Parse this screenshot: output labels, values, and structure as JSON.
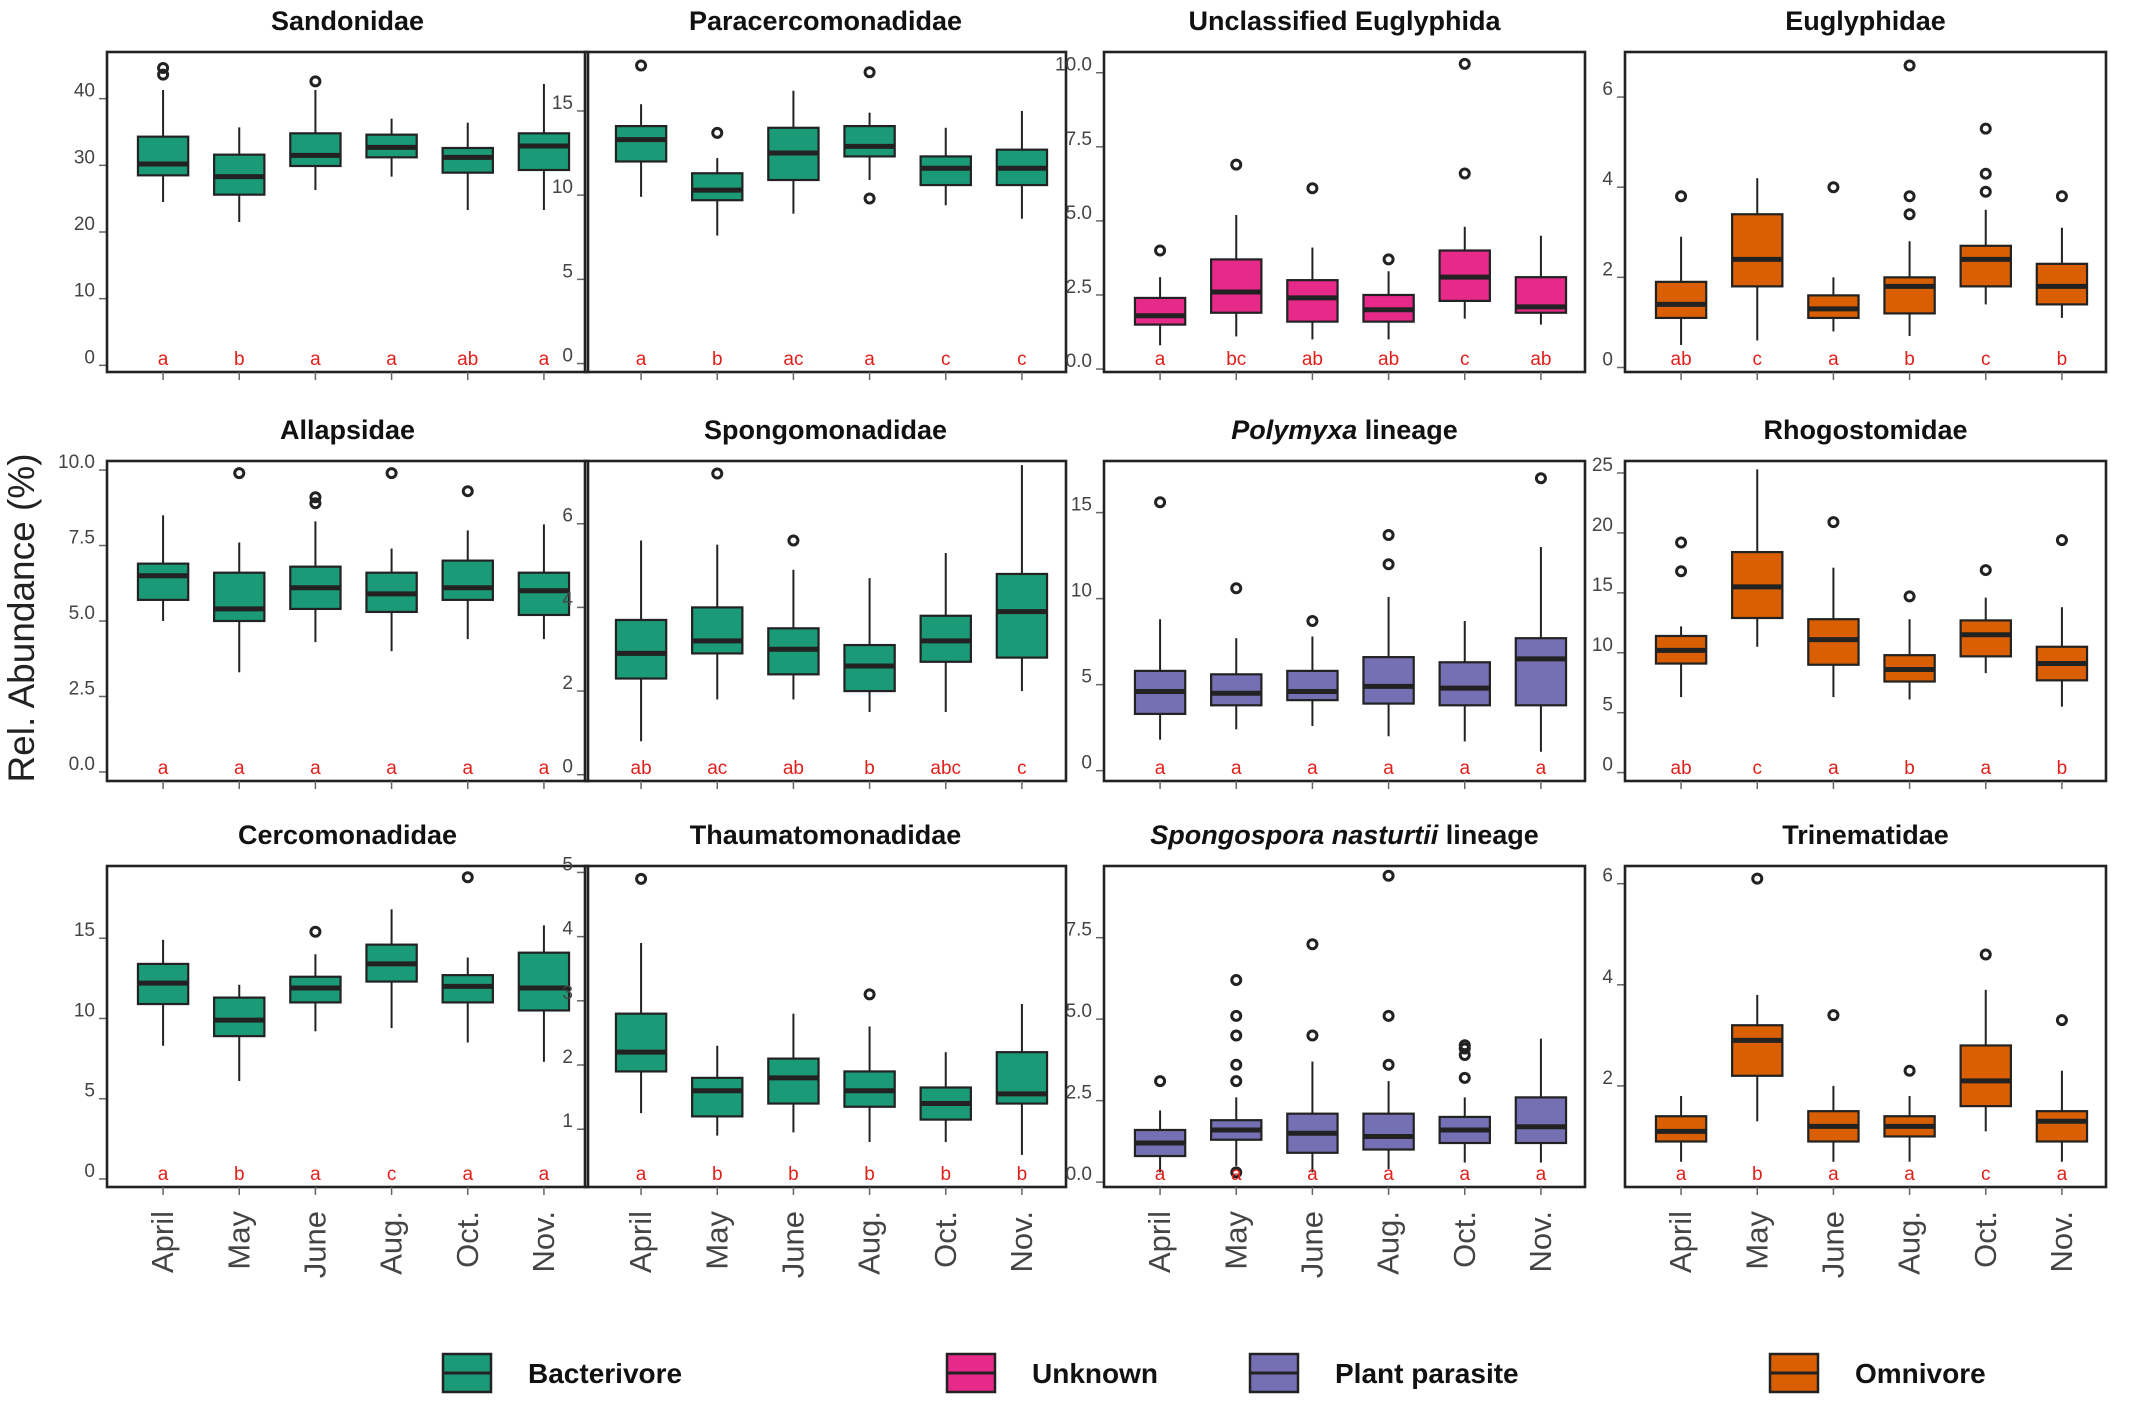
{
  "y_axis_label": "Rel. Abundance (%)",
  "months": [
    "April",
    "May",
    "June",
    "Aug.",
    "Oct.",
    "Nov."
  ],
  "groups": {
    "Bacterivore": "#1b9a77",
    "Unknown": "#e7298a",
    "Plant parasite": "#7570b3",
    "Omnivore": "#d95f02"
  },
  "legend": [
    "Bacterivore",
    "Unknown",
    "Plant parasite",
    "Omnivore"
  ],
  "chart_data": [
    {
      "type": "boxplot",
      "title": "Sandonidae",
      "group": "Bacterivore",
      "ylim": [
        -1,
        47
      ],
      "yticks": [
        0,
        10,
        20,
        30,
        40
      ],
      "yticklabels": [
        "0",
        "10",
        "20",
        "30",
        "40"
      ],
      "letters": [
        "a",
        "b",
        "a",
        "a",
        "ab",
        "a"
      ],
      "boxes": [
        {
          "lw": 24.5,
          "q1": 28.5,
          "med": 30.2,
          "q3": 34.3,
          "uw": 41.3,
          "out": [
            43.6,
            44.6
          ]
        },
        {
          "lw": 21.5,
          "q1": 25.6,
          "med": 28.3,
          "q3": 31.6,
          "uw": 35.7,
          "out": []
        },
        {
          "lw": 26.3,
          "q1": 29.9,
          "med": 31.5,
          "q3": 34.8,
          "uw": 41.3,
          "out": [
            42.6
          ]
        },
        {
          "lw": 28.3,
          "q1": 31.2,
          "med": 32.7,
          "q3": 34.6,
          "uw": 37.0,
          "out": []
        },
        {
          "lw": 23.3,
          "q1": 28.9,
          "med": 31.2,
          "q3": 32.6,
          "uw": 36.4,
          "out": []
        },
        {
          "lw": 23.3,
          "q1": 29.3,
          "med": 32.9,
          "q3": 34.8,
          "uw": 42.2,
          "out": []
        }
      ]
    },
    {
      "type": "boxplot",
      "title": "Paracercomonadidae",
      "group": "Bacterivore",
      "ylim": [
        -0.5,
        18.5
      ],
      "yticks": [
        0,
        5,
        10,
        15
      ],
      "yticklabels": [
        "0",
        "5",
        "10",
        "15"
      ],
      "letters": [
        "a",
        "b",
        "ac",
        "a",
        "c",
        "c"
      ],
      "boxes": [
        {
          "lw": 9.9,
          "q1": 12.0,
          "med": 13.3,
          "q3": 14.1,
          "uw": 15.4,
          "out": [
            17.7
          ]
        },
        {
          "lw": 7.6,
          "q1": 9.7,
          "med": 10.3,
          "q3": 11.3,
          "uw": 12.2,
          "out": [
            13.7
          ]
        },
        {
          "lw": 8.9,
          "q1": 10.9,
          "med": 12.5,
          "q3": 14.0,
          "uw": 16.2,
          "out": []
        },
        {
          "lw": 10.9,
          "q1": 12.3,
          "med": 12.9,
          "q3": 14.1,
          "uw": 14.9,
          "out": [
            9.8,
            17.3
          ]
        },
        {
          "lw": 9.4,
          "q1": 10.6,
          "med": 11.6,
          "q3": 12.3,
          "uw": 14.0,
          "out": []
        },
        {
          "lw": 8.6,
          "q1": 10.6,
          "med": 11.6,
          "q3": 12.7,
          "uw": 15.0,
          "out": []
        }
      ]
    },
    {
      "type": "boxplot",
      "title": "Unclassified Euglyphida",
      "group": "Unknown",
      "ylim": [
        -0.1,
        10.7
      ],
      "yticks": [
        0,
        2.5,
        5,
        7.5,
        10
      ],
      "yticklabels": [
        "0.0",
        "2.5",
        "5.0",
        "7.5",
        "10.0"
      ],
      "letters": [
        "a",
        "bc",
        "ab",
        "ab",
        "c",
        "ab"
      ],
      "boxes": [
        {
          "lw": 0.8,
          "q1": 1.5,
          "med": 1.8,
          "q3": 2.4,
          "uw": 3.1,
          "out": [
            4.0
          ]
        },
        {
          "lw": 1.1,
          "q1": 1.9,
          "med": 2.6,
          "q3": 3.7,
          "uw": 5.2,
          "out": [
            6.9
          ]
        },
        {
          "lw": 1.0,
          "q1": 1.6,
          "med": 2.4,
          "q3": 3.0,
          "uw": 4.1,
          "out": [
            6.1
          ]
        },
        {
          "lw": 1.0,
          "q1": 1.6,
          "med": 2.0,
          "q3": 2.5,
          "uw": 3.3,
          "out": [
            3.7
          ]
        },
        {
          "lw": 1.7,
          "q1": 2.3,
          "med": 3.1,
          "q3": 4.0,
          "uw": 4.8,
          "out": [
            6.6,
            10.3
          ]
        },
        {
          "lw": 1.5,
          "q1": 1.9,
          "med": 2.1,
          "q3": 3.1,
          "uw": 4.5,
          "out": []
        }
      ]
    },
    {
      "type": "boxplot",
      "title": "Euglyphidae",
      "group": "Omnivore",
      "ylim": [
        -0.1,
        7.0
      ],
      "yticks": [
        0,
        2,
        4,
        6
      ],
      "yticklabels": [
        "0",
        "2",
        "4",
        "6"
      ],
      "letters": [
        "ab",
        "c",
        "a",
        "b",
        "c",
        "b"
      ],
      "boxes": [
        {
          "lw": 0.5,
          "q1": 1.1,
          "med": 1.4,
          "q3": 1.9,
          "uw": 2.9,
          "out": [
            3.8
          ]
        },
        {
          "lw": 0.6,
          "q1": 1.8,
          "med": 2.4,
          "q3": 3.4,
          "uw": 4.2,
          "out": []
        },
        {
          "lw": 0.8,
          "q1": 1.1,
          "med": 1.3,
          "q3": 1.6,
          "uw": 2.0,
          "out": [
            4.0
          ]
        },
        {
          "lw": 0.7,
          "q1": 1.2,
          "med": 1.8,
          "q3": 2.0,
          "uw": 2.8,
          "out": [
            3.4,
            3.8,
            6.7
          ]
        },
        {
          "lw": 1.4,
          "q1": 1.8,
          "med": 2.4,
          "q3": 2.7,
          "uw": 3.5,
          "out": [
            3.9,
            4.3,
            5.3
          ]
        },
        {
          "lw": 1.1,
          "q1": 1.4,
          "med": 1.8,
          "q3": 2.3,
          "uw": 3.1,
          "out": [
            3.8
          ]
        }
      ]
    },
    {
      "type": "boxplot",
      "title": "Allapsidae",
      "group": "Bacterivore",
      "ylim": [
        -0.3,
        10.3
      ],
      "yticks": [
        0,
        2.5,
        5,
        7.5,
        10
      ],
      "yticklabels": [
        "0.0",
        "2.5",
        "5.0",
        "7.5",
        "10.0"
      ],
      "letters": [
        "a",
        "a",
        "a",
        "a",
        "a",
        "a"
      ],
      "boxes": [
        {
          "lw": 5.0,
          "q1": 5.7,
          "med": 6.5,
          "q3": 6.9,
          "uw": 8.5,
          "out": []
        },
        {
          "lw": 3.3,
          "q1": 5.0,
          "med": 5.4,
          "q3": 6.6,
          "uw": 7.6,
          "out": [
            9.9
          ]
        },
        {
          "lw": 4.3,
          "q1": 5.4,
          "med": 6.1,
          "q3": 6.8,
          "uw": 8.3,
          "out": [
            8.9,
            9.1
          ]
        },
        {
          "lw": 4.0,
          "q1": 5.3,
          "med": 5.9,
          "q3": 6.6,
          "uw": 7.4,
          "out": [
            9.9
          ]
        },
        {
          "lw": 4.4,
          "q1": 5.7,
          "med": 6.1,
          "q3": 7.0,
          "uw": 8.0,
          "out": [
            9.3
          ]
        },
        {
          "lw": 4.4,
          "q1": 5.2,
          "med": 6.0,
          "q3": 6.6,
          "uw": 8.2,
          "out": []
        }
      ]
    },
    {
      "type": "boxplot",
      "title": "Spongomonadidae",
      "group": "Bacterivore",
      "ylim": [
        -0.15,
        7.5
      ],
      "yticks": [
        0,
        2,
        4,
        6
      ],
      "yticklabels": [
        "0",
        "2",
        "4",
        "6"
      ],
      "letters": [
        "ab",
        "ac",
        "ab",
        "b",
        "abc",
        "c"
      ],
      "boxes": [
        {
          "lw": 0.8,
          "q1": 2.3,
          "med": 2.9,
          "q3": 3.7,
          "uw": 5.6,
          "out": []
        },
        {
          "lw": 1.8,
          "q1": 2.9,
          "med": 3.2,
          "q3": 4.0,
          "uw": 5.5,
          "out": [
            7.2
          ]
        },
        {
          "lw": 1.8,
          "q1": 2.4,
          "med": 3.0,
          "q3": 3.5,
          "uw": 4.9,
          "out": [
            5.6
          ]
        },
        {
          "lw": 1.5,
          "q1": 2.0,
          "med": 2.6,
          "q3": 3.1,
          "uw": 4.7,
          "out": []
        },
        {
          "lw": 1.5,
          "q1": 2.7,
          "med": 3.2,
          "q3": 3.8,
          "uw": 5.3,
          "out": []
        },
        {
          "lw": 2.0,
          "q1": 2.8,
          "med": 3.9,
          "q3": 4.8,
          "uw": 7.4,
          "out": []
        }
      ]
    },
    {
      "type": "boxplot",
      "title": "Polymyxa lineage",
      "title_italic": "Polymyxa",
      "title_rest": " lineage",
      "group": "Plant parasite",
      "ylim": [
        -0.6,
        18.0
      ],
      "yticks": [
        0,
        5,
        10,
        15
      ],
      "yticklabels": [
        "0",
        "5",
        "10",
        "15"
      ],
      "letters": [
        "a",
        "a",
        "a",
        "a",
        "a",
        "a"
      ],
      "boxes": [
        {
          "lw": 1.8,
          "q1": 3.3,
          "med": 4.6,
          "q3": 5.8,
          "uw": 8.8,
          "out": [
            15.6
          ]
        },
        {
          "lw": 2.4,
          "q1": 3.8,
          "med": 4.5,
          "q3": 5.6,
          "uw": 7.7,
          "out": [
            10.6
          ]
        },
        {
          "lw": 2.6,
          "q1": 4.1,
          "med": 4.6,
          "q3": 5.8,
          "uw": 7.8,
          "out": [
            8.7
          ]
        },
        {
          "lw": 2.0,
          "q1": 3.9,
          "med": 4.9,
          "q3": 6.6,
          "uw": 10.1,
          "out": [
            12.0,
            13.7
          ]
        },
        {
          "lw": 1.7,
          "q1": 3.8,
          "med": 4.8,
          "q3": 6.3,
          "uw": 8.7,
          "out": []
        },
        {
          "lw": 1.1,
          "q1": 3.8,
          "med": 6.5,
          "q3": 7.7,
          "uw": 13.0,
          "out": [
            17.0
          ]
        }
      ]
    },
    {
      "type": "boxplot",
      "title": "Rhogostomidae",
      "group": "Omnivore",
      "ylim": [
        -0.7,
        26.0
      ],
      "yticks": [
        0,
        5,
        10,
        15,
        20,
        25
      ],
      "yticklabels": [
        "0",
        "5",
        "10",
        "15",
        "20",
        "25"
      ],
      "letters": [
        "ab",
        "c",
        "a",
        "b",
        "a",
        "b"
      ],
      "boxes": [
        {
          "lw": 6.3,
          "q1": 9.1,
          "med": 10.2,
          "q3": 11.4,
          "uw": 12.2,
          "out": [
            16.8,
            19.2
          ]
        },
        {
          "lw": 10.5,
          "q1": 12.9,
          "med": 15.5,
          "q3": 18.4,
          "uw": 25.3,
          "out": []
        },
        {
          "lw": 6.3,
          "q1": 9.0,
          "med": 11.1,
          "q3": 12.8,
          "uw": 17.1,
          "out": [
            20.9
          ]
        },
        {
          "lw": 6.1,
          "q1": 7.6,
          "med": 8.6,
          "q3": 9.8,
          "uw": 12.8,
          "out": [
            14.7
          ]
        },
        {
          "lw": 8.3,
          "q1": 9.7,
          "med": 11.5,
          "q3": 12.7,
          "uw": 14.6,
          "out": [
            16.9
          ]
        },
        {
          "lw": 5.5,
          "q1": 7.7,
          "med": 9.1,
          "q3": 10.5,
          "uw": 13.8,
          "out": [
            19.4
          ]
        }
      ]
    },
    {
      "type": "boxplot",
      "title": "Cercomonadidae",
      "group": "Bacterivore",
      "ylim": [
        -0.5,
        19.5
      ],
      "yticks": [
        0,
        5,
        10,
        15
      ],
      "yticklabels": [
        "0",
        "5",
        "10",
        "15"
      ],
      "letters": [
        "a",
        "b",
        "a",
        "c",
        "a",
        "a"
      ],
      "boxes": [
        {
          "lw": 8.3,
          "q1": 10.9,
          "med": 12.2,
          "q3": 13.4,
          "uw": 14.9,
          "out": []
        },
        {
          "lw": 6.1,
          "q1": 8.9,
          "med": 9.9,
          "q3": 11.3,
          "uw": 12.1,
          "out": []
        },
        {
          "lw": 9.2,
          "q1": 11.0,
          "med": 11.9,
          "q3": 12.6,
          "uw": 14.0,
          "out": [
            15.4
          ]
        },
        {
          "lw": 9.4,
          "q1": 12.3,
          "med": 13.4,
          "q3": 14.6,
          "uw": 16.8,
          "out": []
        },
        {
          "lw": 8.5,
          "q1": 11.0,
          "med": 12.0,
          "q3": 12.7,
          "uw": 13.8,
          "out": [
            18.8
          ]
        },
        {
          "lw": 7.3,
          "q1": 10.5,
          "med": 11.9,
          "q3": 14.1,
          "uw": 15.8,
          "out": []
        }
      ]
    },
    {
      "type": "boxplot",
      "title": "Thaumatomonadidae",
      "group": "Bacterivore",
      "ylim": [
        0.1,
        5.1
      ],
      "yticks": [
        1,
        2,
        3,
        4,
        5
      ],
      "yticklabels": [
        "1",
        "2",
        "3",
        "4",
        "5"
      ],
      "letters": [
        "a",
        "b",
        "b",
        "b",
        "b",
        "b"
      ],
      "boxes": [
        {
          "lw": 1.25,
          "q1": 1.9,
          "med": 2.2,
          "q3": 2.8,
          "uw": 3.9,
          "out": [
            4.9
          ]
        },
        {
          "lw": 0.9,
          "q1": 1.2,
          "med": 1.6,
          "q3": 1.8,
          "uw": 2.3,
          "out": []
        },
        {
          "lw": 0.95,
          "q1": 1.4,
          "med": 1.8,
          "q3": 2.1,
          "uw": 2.8,
          "out": []
        },
        {
          "lw": 0.8,
          "q1": 1.35,
          "med": 1.6,
          "q3": 1.9,
          "uw": 2.6,
          "out": [
            3.1
          ]
        },
        {
          "lw": 0.8,
          "q1": 1.15,
          "med": 1.4,
          "q3": 1.65,
          "uw": 2.2,
          "out": []
        },
        {
          "lw": 0.6,
          "q1": 1.4,
          "med": 1.55,
          "q3": 2.2,
          "uw": 2.95,
          "out": []
        }
      ]
    },
    {
      "type": "boxplot",
      "title": "Spongospora nasturtii lineage",
      "title_italic": "Spongospora nasturtii",
      "title_rest": " lineage",
      "group": "Plant parasite",
      "ylim": [
        -0.15,
        9.7
      ],
      "yticks": [
        0,
        2.5,
        5,
        7.5
      ],
      "yticklabels": [
        "0.0",
        "2.5",
        "5.0",
        "7.5"
      ],
      "letters": [
        "a",
        "a",
        "a",
        "a",
        "a",
        "a"
      ],
      "boxes": [
        {
          "lw": 0.3,
          "q1": 0.8,
          "med": 1.2,
          "q3": 1.6,
          "uw": 2.2,
          "out": [
            3.1
          ]
        },
        {
          "lw": 0.5,
          "q1": 1.3,
          "med": 1.6,
          "q3": 1.9,
          "uw": 2.6,
          "out": [
            0.3,
            3.1,
            3.6,
            4.5,
            5.1,
            6.2
          ]
        },
        {
          "lw": 0.3,
          "q1": 0.9,
          "med": 1.5,
          "q3": 2.1,
          "uw": 3.7,
          "out": [
            4.5,
            7.3
          ]
        },
        {
          "lw": 0.4,
          "q1": 1.0,
          "med": 1.4,
          "q3": 2.1,
          "uw": 3.1,
          "out": [
            3.6,
            5.1,
            9.4
          ]
        },
        {
          "lw": 0.6,
          "q1": 1.2,
          "med": 1.6,
          "q3": 2.0,
          "uw": 2.6,
          "out": [
            3.2,
            3.9,
            4.1,
            4.2
          ]
        },
        {
          "lw": 0.6,
          "q1": 1.2,
          "med": 1.7,
          "q3": 2.6,
          "uw": 4.4,
          "out": []
        }
      ]
    },
    {
      "type": "boxplot",
      "title": "Trinematidae",
      "group": "Omnivore",
      "ylim": [
        0.0,
        6.35
      ],
      "yticks": [
        2,
        4,
        6
      ],
      "yticklabels": [
        "2",
        "4",
        "6"
      ],
      "letters": [
        "a",
        "b",
        "a",
        "a",
        "c",
        "a"
      ],
      "boxes": [
        {
          "lw": 0.5,
          "q1": 0.9,
          "med": 1.1,
          "q3": 1.4,
          "uw": 1.8,
          "out": []
        },
        {
          "lw": 1.3,
          "q1": 2.2,
          "med": 2.9,
          "q3": 3.2,
          "uw": 3.8,
          "out": [
            6.1
          ]
        },
        {
          "lw": 0.5,
          "q1": 0.9,
          "med": 1.2,
          "q3": 1.5,
          "uw": 2.0,
          "out": [
            3.4
          ]
        },
        {
          "lw": 0.5,
          "q1": 1.0,
          "med": 1.2,
          "q3": 1.4,
          "uw": 1.8,
          "out": [
            2.3
          ]
        },
        {
          "lw": 1.1,
          "q1": 1.6,
          "med": 2.1,
          "q3": 2.8,
          "uw": 3.9,
          "out": [
            4.6
          ]
        },
        {
          "lw": 0.5,
          "q1": 0.9,
          "med": 1.3,
          "q3": 1.5,
          "uw": 2.3,
          "out": [
            3.3
          ]
        }
      ]
    }
  ]
}
